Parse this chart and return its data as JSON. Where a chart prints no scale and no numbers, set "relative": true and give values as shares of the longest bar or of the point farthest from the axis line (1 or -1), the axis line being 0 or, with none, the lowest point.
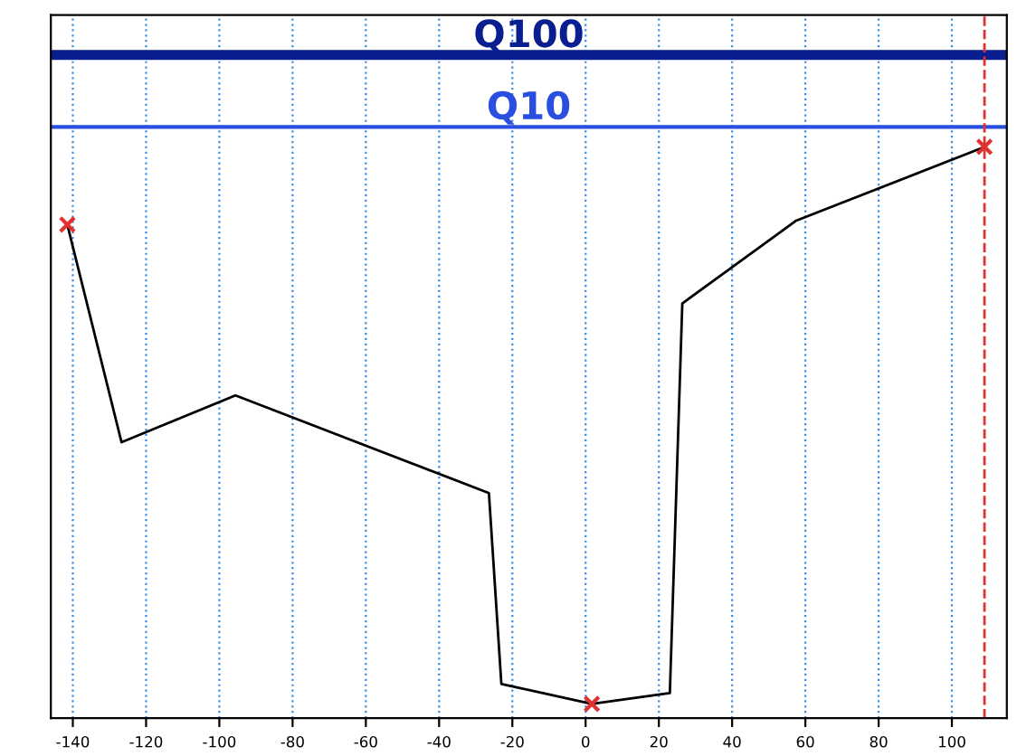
{
  "chart_data": {
    "type": "line",
    "relative": true,
    "tick_labels": "x",
    "grid": true,
    "legend": false,
    "xlim": [
      -146,
      115
    ],
    "xticks": [
      -140,
      -120,
      -100,
      -80,
      -60,
      -40,
      -20,
      0,
      20,
      40,
      60,
      80,
      100
    ],
    "series": [
      {
        "color": "#000000",
        "marker": "none",
        "x": [
          -141.5,
          -126.7,
          -95.6,
          -26.4,
          -23,
          1.7,
          23,
          26.4,
          57.5,
          108.9
        ],
        "values": [
          0.864,
          0.483,
          0.565,
          0.394,
          0.06,
          0.025,
          0.044,
          0.726,
          0.871,
          1.0
        ]
      },
      {
        "type": "scatter",
        "color": "#e03030",
        "marker": "cross",
        "x": [
          -141.5,
          1.7,
          108.9
        ],
        "values": [
          0.864,
          0.025,
          1.0
        ]
      }
    ],
    "ref_lines": [
      {
        "axis": "y",
        "value": 1.161,
        "label": "Q100",
        "color": "#0a1f8f",
        "line_style": "solid"
      },
      {
        "axis": "y",
        "value": 1.035,
        "label": "Q10",
        "color": "#2a4fe0",
        "line_style": "solid"
      },
      {
        "axis": "x",
        "value": 108.9,
        "label": null,
        "color": "#e03030",
        "line_style": "dashed"
      }
    ]
  }
}
